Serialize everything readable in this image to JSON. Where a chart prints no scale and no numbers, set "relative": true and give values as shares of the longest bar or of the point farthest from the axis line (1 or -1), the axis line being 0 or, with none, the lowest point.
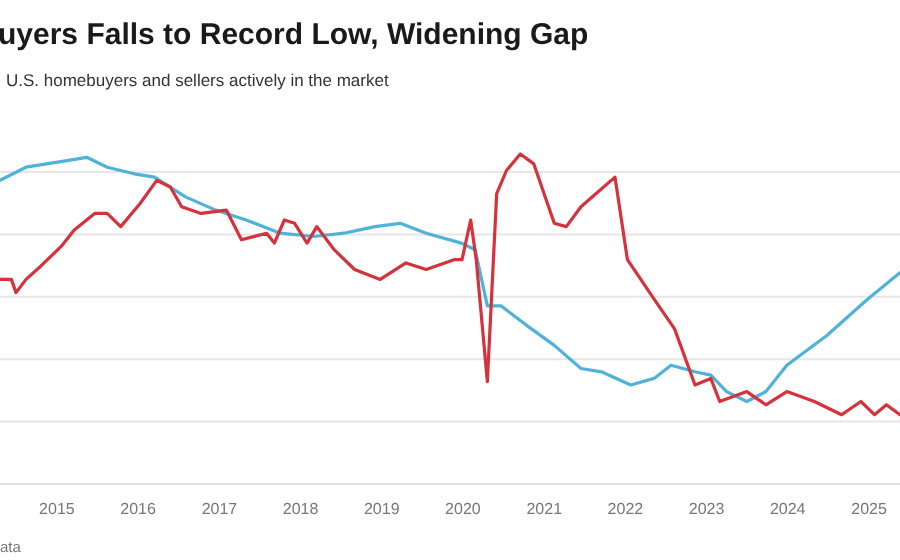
{
  "chart_data": {
    "type": "line",
    "title": "uyers Falls to Record Low, Widening Gap",
    "subtitle": "U.S. homebuyers and sellers actively in the market",
    "annotations": [
      "ata"
    ],
    "relative": true,
    "grid": "y",
    "marker": "none",
    "line_style": "solid",
    "xlim": [
      "2014-04-20",
      "2025-05-20"
    ],
    "xticks": [
      "2015",
      "2016",
      "2017",
      "2018",
      "2019",
      "2020",
      "2021",
      "2022",
      "2023",
      "2024",
      "2025"
    ],
    "series": [
      {
        "color": "#4fb3d9",
        "x": [
          "2014-04-20",
          "2014-08-15",
          "2015-02-15",
          "2015-05-15",
          "2015-08-15",
          "2015-12-15",
          "2016-03-15",
          "2016-08-01",
          "2016-12-15",
          "2017-05-01",
          "2017-10-01",
          "2018-03-01",
          "2018-07-15",
          "2018-12-01",
          "2019-03-25",
          "2019-07-20",
          "2019-12-25",
          "2020-02-25",
          "2020-04-20",
          "2020-06-20",
          "2020-10-15",
          "2021-02-15",
          "2021-06-15",
          "2021-09-15",
          "2022-01-25",
          "2022-05-10",
          "2022-07-25",
          "2022-11-10",
          "2023-01-20",
          "2023-04-01",
          "2023-07-01",
          "2023-09-25",
          "2023-12-28",
          "2024-06-25",
          "2024-12-25",
          "2025-05-20"
        ],
        "values": [
          0.92,
          0.96,
          0.98,
          0.99,
          0.96,
          0.94,
          0.93,
          0.87,
          0.83,
          0.8,
          0.76,
          0.75,
          0.76,
          0.78,
          0.79,
          0.76,
          0.73,
          0.71,
          0.54,
          0.54,
          0.48,
          0.42,
          0.35,
          0.34,
          0.3,
          0.32,
          0.36,
          0.34,
          0.33,
          0.28,
          0.25,
          0.28,
          0.36,
          0.45,
          0.56,
          0.64
        ]
      },
      {
        "color": "#d6323c",
        "x": [
          "2014-04-20",
          "2014-06-10",
          "2014-07-01",
          "2014-08-15",
          "2014-10-20",
          "2015-01-20",
          "2015-03-20",
          "2015-06-20",
          "2015-08-15",
          "2015-10-15",
          "2016-01-10",
          "2016-03-25",
          "2016-05-25",
          "2016-07-15",
          "2016-10-10",
          "2017-02-01",
          "2017-04-10",
          "2017-08-01",
          "2017-09-05",
          "2017-10-20",
          "2017-12-05",
          "2018-01-30",
          "2018-03-15",
          "2018-06-01",
          "2018-09-01",
          "2018-12-25",
          "2019-04-20",
          "2019-07-20",
          "2019-11-25",
          "2019-12-28",
          "2020-02-05",
          "2020-03-01",
          "2020-04-20",
          "2020-06-01",
          "2020-07-15",
          "2020-09-15",
          "2020-11-15",
          "2021-02-15",
          "2021-04-10",
          "2021-06-15",
          "2021-11-15",
          "2022-01-10",
          "2022-05-10",
          "2022-08-10",
          "2022-11-10",
          "2023-01-20",
          "2023-03-01",
          "2023-07-01",
          "2023-09-25",
          "2023-12-28",
          "2024-04-30",
          "2024-08-30",
          "2024-11-25",
          "2025-01-25",
          "2025-03-20",
          "2025-05-20"
        ],
        "values": [
          0.62,
          0.62,
          0.58,
          0.62,
          0.66,
          0.72,
          0.77,
          0.82,
          0.82,
          0.78,
          0.85,
          0.92,
          0.9,
          0.84,
          0.82,
          0.83,
          0.74,
          0.76,
          0.73,
          0.8,
          0.79,
          0.73,
          0.78,
          0.71,
          0.65,
          0.62,
          0.67,
          0.65,
          0.68,
          0.68,
          0.8,
          0.68,
          0.31,
          0.88,
          0.95,
          1,
          0.97,
          0.79,
          0.78,
          0.84,
          0.93,
          0.68,
          0.56,
          0.47,
          0.3,
          0.32,
          0.25,
          0.28,
          0.24,
          0.28,
          0.25,
          0.21,
          0.25,
          0.21,
          0.24,
          0.21
        ]
      }
    ]
  }
}
